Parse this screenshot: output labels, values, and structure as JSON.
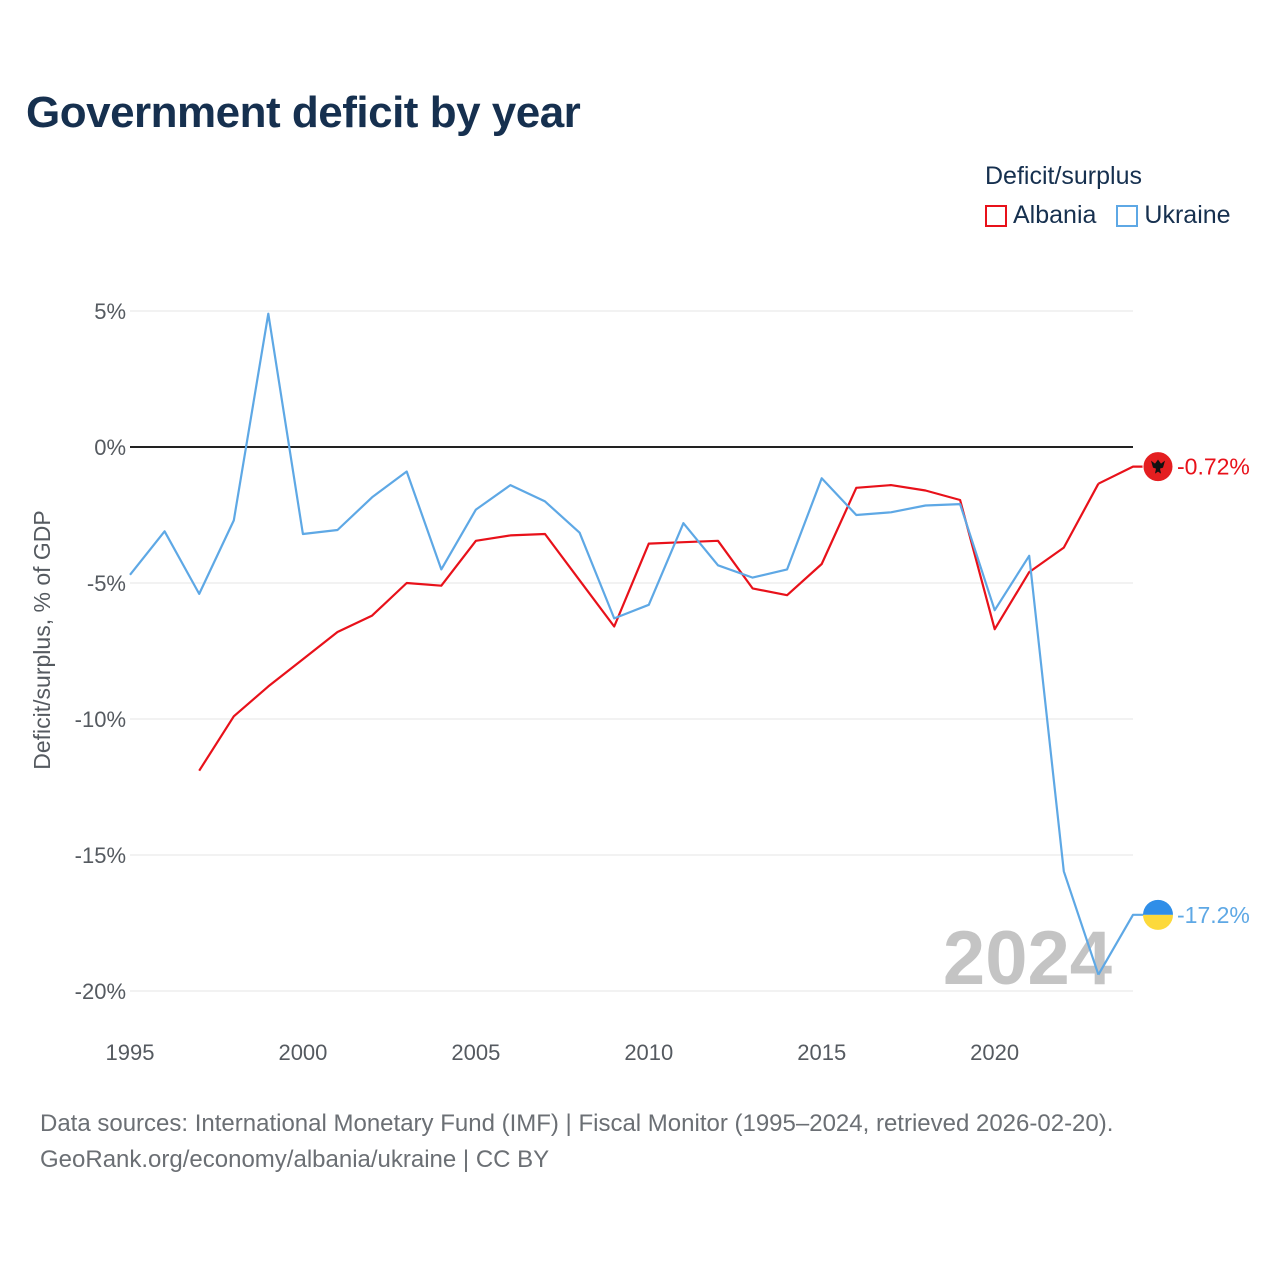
{
  "chart_data": {
    "type": "line",
    "title": "Government deficit by year",
    "ylabel": "Deficit/surplus, % of GDP",
    "xlabel": "",
    "legend_title": "Deficit/surplus",
    "legend_position": "top-right",
    "xlim": [
      1995,
      2024
    ],
    "ylim": [
      -20,
      5
    ],
    "x_ticks": [
      1995,
      2000,
      2005,
      2010,
      2015,
      2020
    ],
    "x_tick_labels": [
      "1995",
      "2000",
      "2005",
      "2010",
      "2015",
      "2020"
    ],
    "y_ticks": [
      5,
      0,
      -5,
      -10,
      -15,
      -20
    ],
    "y_tick_labels": [
      "5%",
      "0%",
      "-5%",
      "-10%",
      "-15%",
      "-20%"
    ],
    "grid": true,
    "zero_line": true,
    "year_watermark": "2024",
    "series": [
      {
        "name": "Albania",
        "color": "#e8111a",
        "end_label": "-0.72%",
        "marker_icon": "albania-flag-icon",
        "points": [
          [
            1997,
            -11.9
          ],
          [
            1998,
            -9.9
          ],
          [
            1999,
            -8.8
          ],
          [
            2000,
            -7.8
          ],
          [
            2001,
            -6.8
          ],
          [
            2002,
            -6.2
          ],
          [
            2003,
            -5.0
          ],
          [
            2004,
            -5.1
          ],
          [
            2005,
            -3.45
          ],
          [
            2006,
            -3.25
          ],
          [
            2007,
            -3.2
          ],
          [
            2008,
            -4.9
          ],
          [
            2009,
            -6.6
          ],
          [
            2010,
            -3.55
          ],
          [
            2011,
            -3.5
          ],
          [
            2012,
            -3.45
          ],
          [
            2013,
            -5.2
          ],
          [
            2014,
            -5.45
          ],
          [
            2015,
            -4.3
          ],
          [
            2016,
            -1.5
          ],
          [
            2017,
            -1.4
          ],
          [
            2018,
            -1.6
          ],
          [
            2019,
            -1.95
          ],
          [
            2020,
            -6.7
          ],
          [
            2021,
            -4.6
          ],
          [
            2022,
            -3.7
          ],
          [
            2023,
            -1.35
          ],
          [
            2024,
            -0.72
          ]
        ]
      },
      {
        "name": "Ukraine",
        "color": "#5ea8e5",
        "end_label": "-17.2%",
        "marker_icon": "ukraine-flag-icon",
        "points": [
          [
            1995,
            -4.7
          ],
          [
            1996,
            -3.1
          ],
          [
            1997,
            -5.4
          ],
          [
            1998,
            -2.7
          ],
          [
            1999,
            4.9
          ],
          [
            2000,
            -3.2
          ],
          [
            2001,
            -3.05
          ],
          [
            2002,
            -1.85
          ],
          [
            2003,
            -0.9
          ],
          [
            2004,
            -4.5
          ],
          [
            2005,
            -2.3
          ],
          [
            2006,
            -1.4
          ],
          [
            2007,
            -2.0
          ],
          [
            2008,
            -3.15
          ],
          [
            2009,
            -6.3
          ],
          [
            2010,
            -5.8
          ],
          [
            2011,
            -2.8
          ],
          [
            2012,
            -4.35
          ],
          [
            2013,
            -4.8
          ],
          [
            2014,
            -4.5
          ],
          [
            2015,
            -1.15
          ],
          [
            2016,
            -2.5
          ],
          [
            2017,
            -2.4
          ],
          [
            2018,
            -2.15
          ],
          [
            2019,
            -2.1
          ],
          [
            2020,
            -6.0
          ],
          [
            2021,
            -4.0
          ],
          [
            2022,
            -15.6
          ],
          [
            2023,
            -19.4
          ],
          [
            2024,
            -17.2
          ]
        ]
      }
    ]
  },
  "source": {
    "line1": "Data sources: International Monetary Fund (IMF) | Fiscal Monitor (1995–2024, retrieved 2026-02-20).",
    "line2": "GeoRank.org/economy/albania/ukraine | CC BY"
  }
}
